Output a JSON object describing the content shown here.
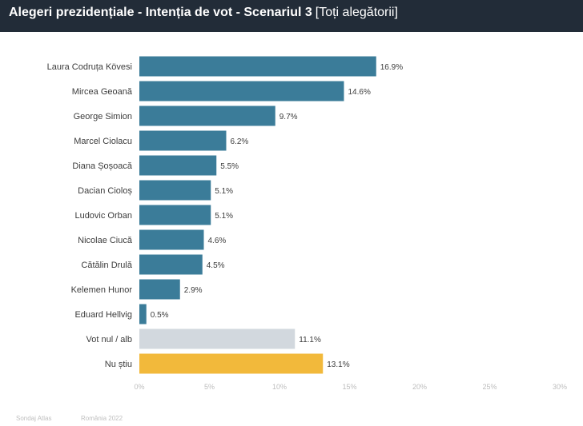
{
  "header": {
    "title": "Alegeri prezidențiale - Intenția de vot - Scenariul 3",
    "subtitle": "[Toți alegătorii]"
  },
  "colors": {
    "header_bg": "#222c38",
    "bar_candidate": "#3b7c99",
    "bar_null": "#d2d8de",
    "bar_dont_know": "#f2b93b"
  },
  "chart_data": {
    "type": "bar",
    "orientation": "horizontal",
    "title": "Alegeri prezidențiale - Intenția de vot - Scenariul 3 [Toți alegătorii]",
    "categories": [
      "Laura Codruța Kövesi",
      "Mircea Geoană",
      "George Simion",
      "Marcel Ciolacu",
      "Diana Șoșoacă",
      "Dacian Cioloș",
      "Ludovic Orban",
      "Nicolae Ciucă",
      "Cătălin Drulă",
      "Kelemen Hunor",
      "Eduard Hellvig",
      "Vot nul / alb",
      "Nu știu"
    ],
    "values": [
      16.9,
      14.6,
      9.7,
      6.2,
      5.5,
      5.1,
      5.1,
      4.6,
      4.5,
      2.9,
      0.5,
      11.1,
      13.1
    ],
    "value_labels": [
      "16.9%",
      "14.6%",
      "9.7%",
      "6.2%",
      "5.5%",
      "5.1%",
      "5.1%",
      "4.6%",
      "4.5%",
      "2.9%",
      "0.5%",
      "11.1%",
      "13.1%"
    ],
    "bar_kinds": [
      "candidate",
      "candidate",
      "candidate",
      "candidate",
      "candidate",
      "candidate",
      "candidate",
      "candidate",
      "candidate",
      "candidate",
      "candidate",
      "null",
      "dont_know"
    ],
    "xlim": [
      0,
      30
    ],
    "xticks": [
      0,
      5,
      10,
      15,
      20,
      25,
      30
    ],
    "xtick_labels": [
      "0%",
      "5%",
      "10%",
      "15%",
      "20%",
      "25%",
      "30%"
    ],
    "xlabel": "",
    "ylabel": "",
    "grid": false
  },
  "footer": {
    "source": "Sondaj Atlas",
    "region": "România 2022"
  }
}
